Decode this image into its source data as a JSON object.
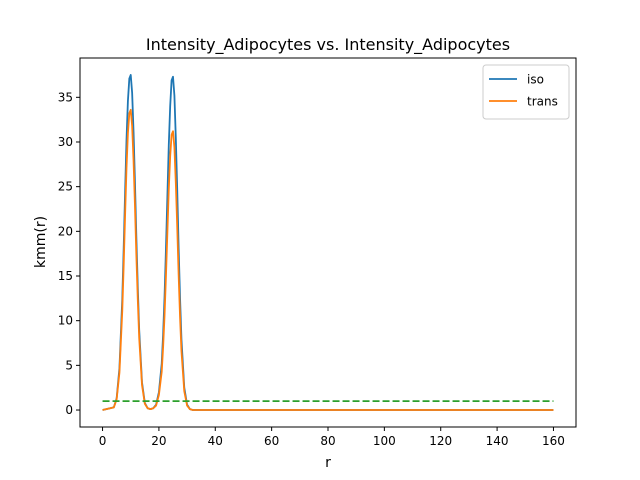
{
  "chart_data": {
    "type": "line",
    "title": "Intensity_Adipocytes vs. Intensity_Adipocytes",
    "xlabel": "r",
    "ylabel": "kmm(r)",
    "xlim": [
      -8,
      168
    ],
    "ylim": [
      -1.9,
      39.4
    ],
    "xticks": [
      0,
      20,
      40,
      60,
      80,
      100,
      120,
      140,
      160
    ],
    "yticks": [
      0,
      5,
      10,
      15,
      20,
      25,
      30,
      35
    ],
    "grid": false,
    "legend_position": "top-right",
    "series": [
      {
        "name": "iso",
        "color": "#1f77b4",
        "x": [
          0,
          4,
          5,
          6,
          7,
          7.5,
          8,
          8.5,
          9,
          9.5,
          10,
          10.5,
          11,
          11.5,
          12,
          12.5,
          13,
          14,
          15,
          16,
          17,
          18,
          19,
          20,
          21,
          21.5,
          22,
          22.5,
          23,
          23.5,
          24,
          24.5,
          25,
          25.5,
          26,
          26.5,
          27,
          27.5,
          28,
          29,
          30,
          31,
          32,
          160
        ],
        "y": [
          0,
          0.3,
          1.3,
          4.7,
          12.4,
          18.1,
          24.3,
          30.2,
          34.6,
          37.1,
          37.5,
          35.5,
          31.1,
          25.5,
          19.3,
          13.8,
          9.0,
          3.1,
          0.8,
          0.2,
          0.1,
          0.2,
          0.6,
          2.0,
          5.2,
          8.5,
          12.7,
          18.0,
          23.8,
          29.6,
          34.0,
          36.9,
          37.3,
          35.2,
          30.4,
          24.6,
          18.1,
          12.5,
          7.9,
          2.5,
          0.6,
          0.1,
          0,
          0
        ]
      },
      {
        "name": "trans",
        "color": "#ff7f0e",
        "x": [
          0,
          4,
          5,
          6,
          7,
          7.5,
          8,
          8.5,
          9,
          9.5,
          10,
          10.5,
          11,
          11.5,
          12,
          12.5,
          13,
          14,
          15,
          16,
          17,
          18,
          19,
          20,
          21,
          21.5,
          22,
          22.5,
          23,
          23.5,
          24,
          24.5,
          25,
          25.5,
          26,
          26.5,
          27,
          27.5,
          28,
          29,
          30,
          31,
          32,
          160
        ],
        "y": [
          0,
          0.3,
          1.2,
          4.2,
          11.1,
          16.2,
          21.8,
          27.1,
          31.0,
          33.2,
          33.6,
          31.8,
          27.9,
          22.9,
          17.3,
          12.4,
          8.1,
          2.8,
          0.7,
          0.2,
          0.1,
          0.2,
          0.5,
          1.7,
          4.3,
          7.1,
          10.6,
          15.0,
          19.8,
          24.7,
          28.4,
          30.8,
          31.2,
          29.4,
          25.4,
          20.5,
          15.1,
          10.4,
          6.6,
          2.1,
          0.5,
          0.1,
          0,
          0
        ]
      },
      {
        "name": "",
        "color": "#2ca02c",
        "dashed": true,
        "x": [
          0,
          160
        ],
        "y": [
          1,
          1
        ]
      }
    ]
  }
}
